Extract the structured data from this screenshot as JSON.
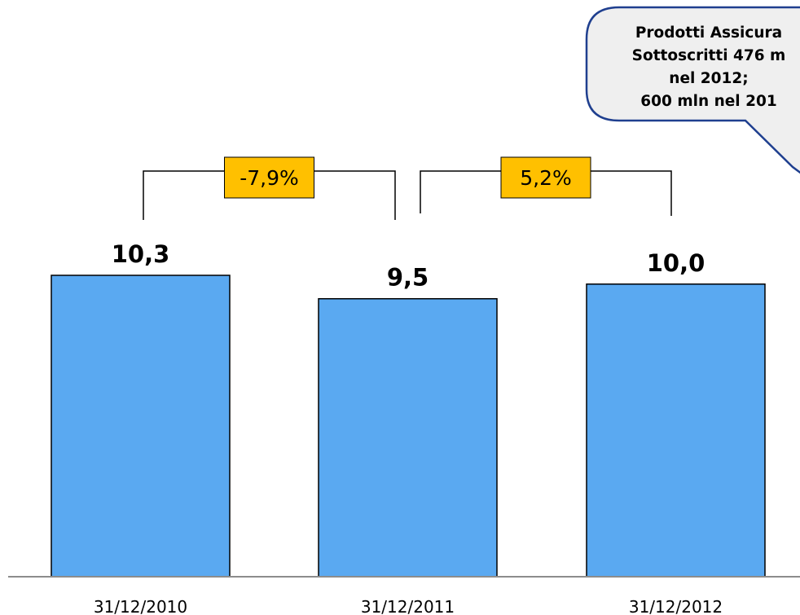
{
  "chart_data": {
    "type": "bar",
    "categories": [
      "31/12/2010",
      "31/12/2011",
      "31/12/2012"
    ],
    "values": [
      10.3,
      9.5,
      10.0
    ],
    "value_labels": [
      "10,3",
      "9,5",
      "10,0"
    ],
    "title": "",
    "xlabel": "",
    "ylabel": "",
    "ylim": [
      0,
      10.3
    ],
    "grid": false,
    "bar_color": "#5aa9f1",
    "changes": [
      {
        "from": "31/12/2010",
        "to": "31/12/2011",
        "label": "-7,9%"
      },
      {
        "from": "31/12/2011",
        "to": "31/12/2012",
        "label": "5,2%"
      }
    ],
    "change_badge_color": "#ffc000",
    "annotation": {
      "lines": [
        "Prodotti Assicura",
        "Sottoscritti 476 m",
        "nel 2012;",
        "600 mln nel 201"
      ],
      "border_color": "#1f3f8f",
      "fill_color": "#efefef"
    }
  }
}
